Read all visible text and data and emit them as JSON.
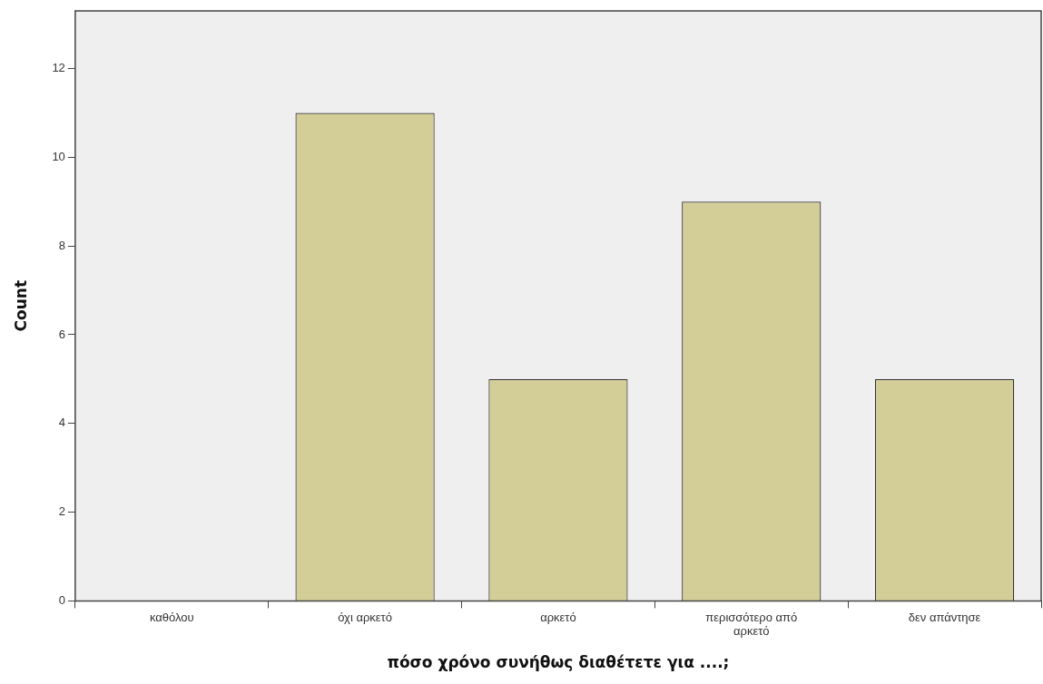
{
  "chart_data": {
    "type": "bar",
    "xlabel": "πόσο χρόνο συνήθως διαθέτετε για ....;",
    "ylabel": "Count",
    "categories": [
      "καθόλου",
      "όχι αρκετό",
      "αρκετό",
      "περισσότερο από αρκετό",
      "δεν απάντησε"
    ],
    "values": [
      0,
      11,
      5,
      9,
      5
    ],
    "color": "#d3ce98",
    "ylim": [
      0,
      13.3
    ],
    "yticks": [
      0,
      2,
      4,
      6,
      8,
      10,
      12
    ],
    "grid": false,
    "legend": false
  }
}
